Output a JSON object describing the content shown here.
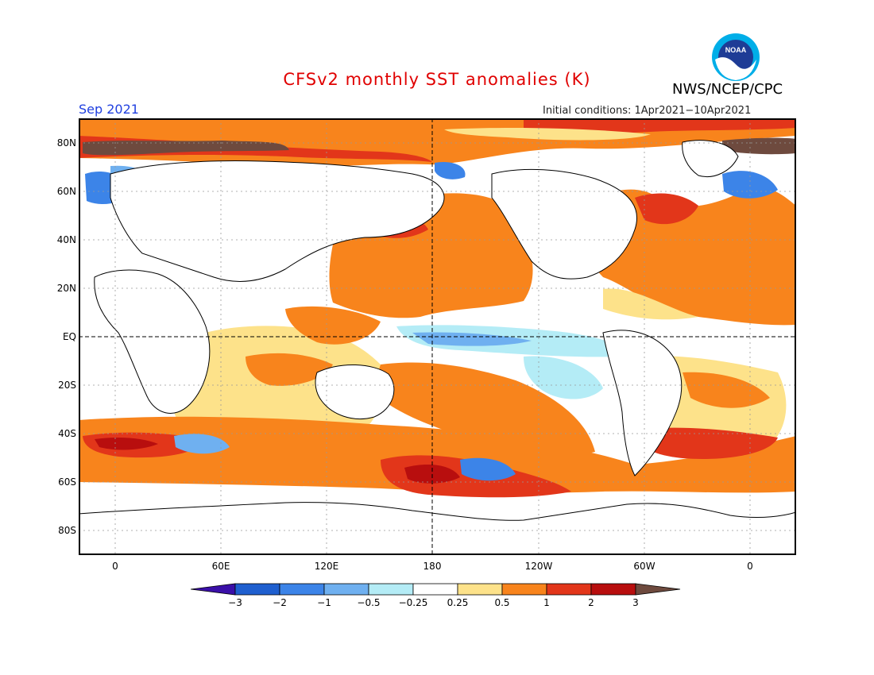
{
  "header": {
    "title": "CFSv2 monthly SST anomalies (K)",
    "agency": "NWS/NCEP/CPC",
    "month": "Sep 2021",
    "initial_conditions": "Initial conditions: 1Apr2021−10Apr2021",
    "logo_text": "NOAA"
  },
  "axes": {
    "lat_labels": [
      "80N",
      "60N",
      "40N",
      "20N",
      "EQ",
      "20S",
      "40S",
      "60S",
      "80S"
    ],
    "lon_labels": [
      "0",
      "60E",
      "120E",
      "180",
      "120W",
      "60W",
      "0"
    ]
  },
  "colorbar": {
    "labels": [
      "−3",
      "−2",
      "−1",
      "−0.5",
      "−0.25",
      "0.25",
      "0.5",
      "1",
      "2",
      "3"
    ],
    "colors": [
      "#3a0fa8",
      "#1f5fcf",
      "#3c84e8",
      "#6fb0f0",
      "#b4ecf6",
      "#ffffff",
      "#fde28a",
      "#f8841c",
      "#e2361a",
      "#b80e0e",
      "#6e4a3e"
    ]
  },
  "colors": {
    "land": "#ffffff",
    "coast": "#000000",
    "title_color": "#e00000",
    "month_color": "#2040e0"
  }
}
